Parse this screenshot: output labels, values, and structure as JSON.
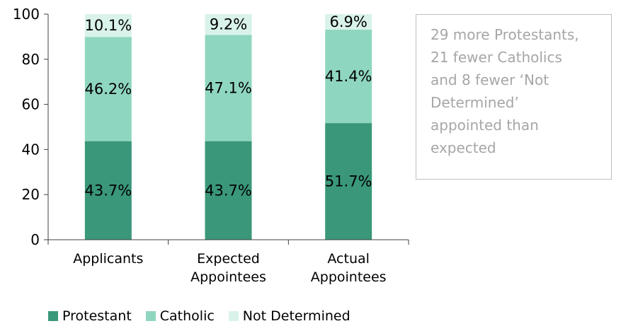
{
  "chart_data": {
    "type": "stacked-bar",
    "categories": [
      "Applicants",
      "Expected Appointees",
      "Actual Appointees"
    ],
    "category_lines": [
      [
        "Applicants"
      ],
      [
        "Expected",
        "Appointees"
      ],
      [
        "Actual",
        "Appointees"
      ]
    ],
    "series": [
      {
        "name": "Protestant",
        "values": [
          43.7,
          43.7,
          51.7
        ],
        "color": "#3a977a",
        "labels": [
          "43.7%",
          "43.7%",
          "51.7%"
        ]
      },
      {
        "name": "Catholic",
        "values": [
          46.2,
          47.1,
          41.4
        ],
        "color": "#8fd6c0",
        "labels": [
          "46.2%",
          "47.1%",
          "41.4%"
        ]
      },
      {
        "name": "Not Determined",
        "values": [
          10.1,
          9.2,
          6.9
        ],
        "color": "#d9f2ea",
        "labels": [
          "10.1%",
          "9.2%",
          "6.9%"
        ]
      }
    ],
    "yticks": [
      "0",
      "20",
      "40",
      "60",
      "80",
      "100"
    ],
    "ylim": [
      0,
      100
    ],
    "grid": false,
    "legend_position": "bottom"
  },
  "annotation": {
    "lines": [
      "29 more Protestants,",
      "21 fewer Catholics",
      "and 8 fewer ‘Not",
      "Determined’",
      "appointed than",
      "expected"
    ]
  }
}
